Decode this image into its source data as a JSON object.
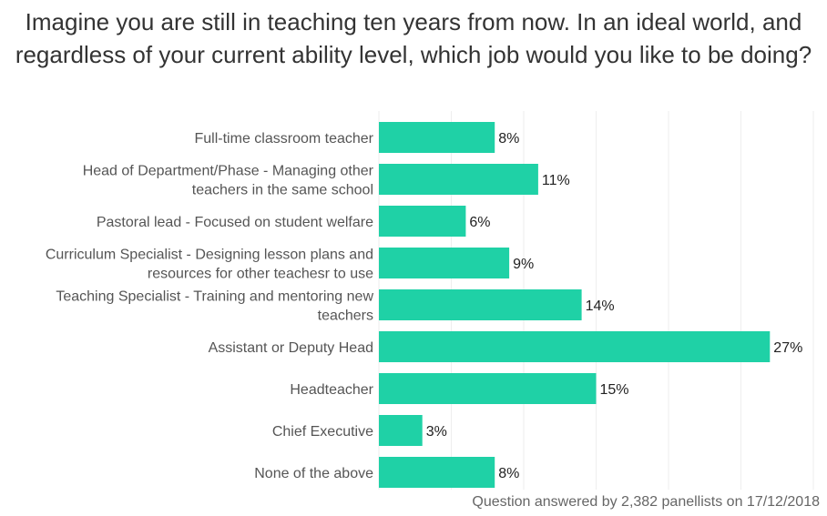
{
  "chart_data": {
    "type": "bar",
    "orientation": "horizontal",
    "title": "Imagine you are still in teaching ten years from now. In an ideal world, and regardless of your current ability level, which job would you like to be doing?",
    "categories": [
      [
        "Full-time classroom teacher"
      ],
      [
        "Head of Department/Phase - Managing other",
        "teachers in the same school"
      ],
      [
        "Pastoral lead - Focused on student welfare"
      ],
      [
        "Curriculum Specialist - Designing lesson plans and",
        "resources for other teachesr to use"
      ],
      [
        "Teaching Specialist - Training and mentoring new",
        "teachers"
      ],
      [
        "Assistant or Deputy Head"
      ],
      [
        "Headteacher"
      ],
      [
        "Chief Executive"
      ],
      [
        "None of the above"
      ]
    ],
    "values": [
      8,
      11,
      6,
      9,
      14,
      27,
      15,
      3,
      8
    ],
    "value_labels": [
      "8%",
      "11%",
      "6%",
      "9%",
      "14%",
      "27%",
      "15%",
      "3%",
      "8%"
    ],
    "xlim": [
      0,
      30
    ],
    "grid": true,
    "bar_color": "#1fd1a6",
    "footnote": "Question answered by 2,382 panellists on 17/12/2018"
  }
}
